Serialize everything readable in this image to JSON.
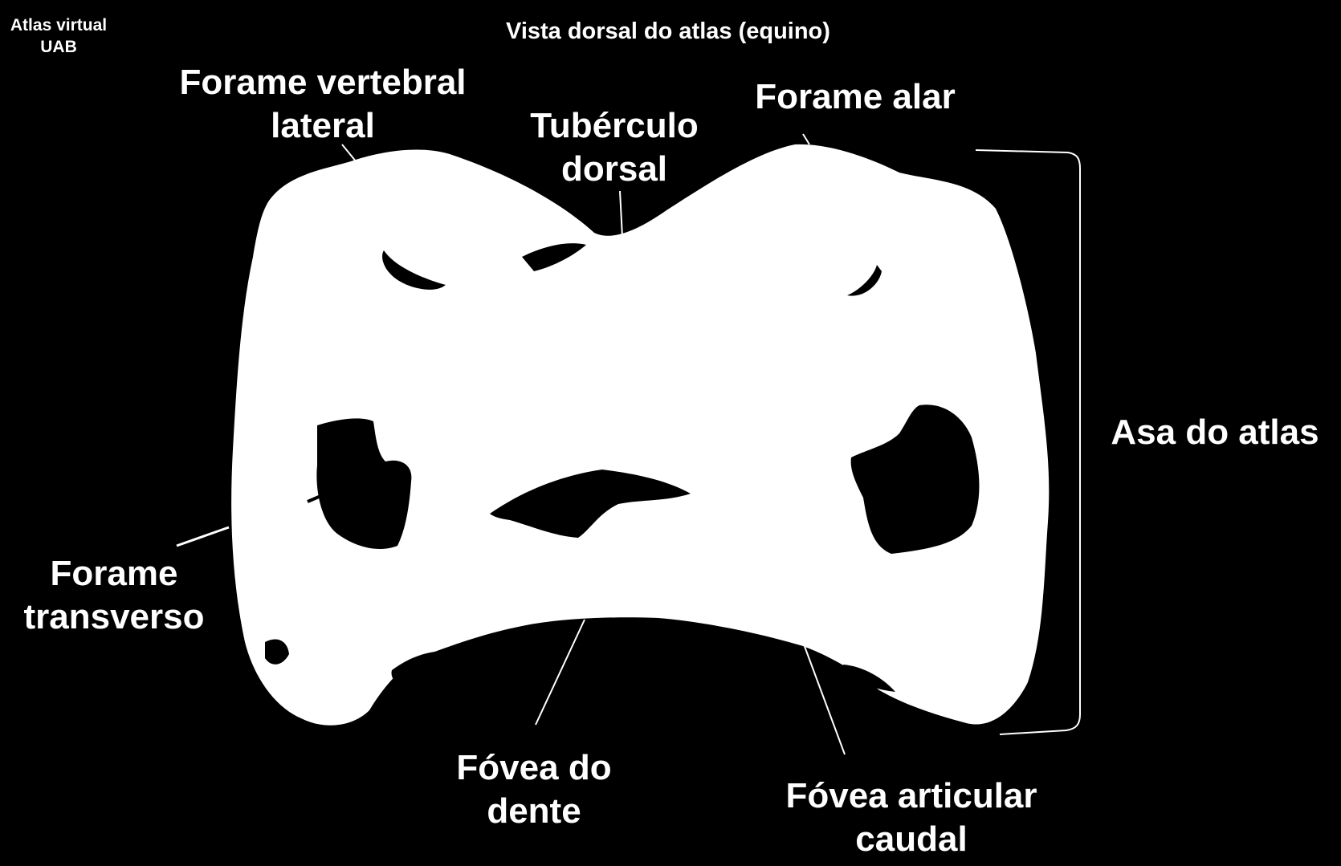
{
  "header": {
    "source_line1": "Atlas virtual",
    "source_line2": "UAB",
    "title": "Vista dorsal  do atlas (equino)"
  },
  "labels": {
    "forame_vertebral_lateral": [
      "Forame vertebral",
      "lateral"
    ],
    "tuberculo_dorsal": [
      "Tubérculo",
      "dorsal"
    ],
    "forame_alar": [
      "Forame alar"
    ],
    "asa_do_atlas": [
      "Asa do atlas"
    ],
    "forame_transverso": [
      "Forame",
      "transverso"
    ],
    "fovea_do_dente": [
      "Fóvea do",
      "dente"
    ],
    "fovea_articular_caudal": [
      "Fóvea articular",
      "caudal"
    ]
  },
  "colors": {
    "background": "#000000",
    "bone": "#ffffff",
    "text": "#ffffff"
  }
}
